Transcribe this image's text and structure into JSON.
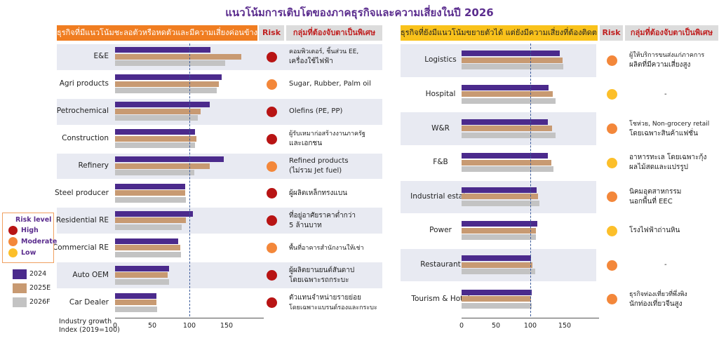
{
  "title": "แนวโน้มการเติบโตของภาคธุรกิจและความเสี่ยงในปี 2026",
  "colors": {
    "2024": "#4b2a8c",
    "2025E": "#c89a72",
    "2026F": "#c3c3c3",
    "High": "#b81414",
    "Moderate": "#f3873a",
    "Low": "#fcbf2a"
  },
  "legend": {
    "risk_title": "Risk level",
    "risk_levels": [
      "High",
      "Moderate",
      "Low"
    ],
    "years": [
      "2024",
      "2025E",
      "2026F"
    ]
  },
  "axis_note": [
    "Industry growth",
    "Index (2019=100)"
  ],
  "left": {
    "header": "ธุรกิจที่มีแนวโน้มชะลอตัวหรือหดตัวและมีความเสี่ยงค่อนข้างมาก",
    "risk_header": "Risk",
    "group_header": "กลุ่มที่ต้องจับตาเป็นพิเศษ",
    "rows": [
      {
        "name": "E&E",
        "risk": "High",
        "group": [
          "คอมพิวเตอร์, ชิ้นส่วน EE,",
          "เครื่องใช้ไฟฟ้า"
        ]
      },
      {
        "name": "Agri products",
        "risk": "Moderate",
        "group": [
          "Sugar, Rubber, Palm oil"
        ]
      },
      {
        "name": "Petrochemical",
        "risk": "High",
        "group": [
          "Olefins (PE, PP)"
        ]
      },
      {
        "name": "Construction",
        "risk": "High",
        "group": [
          "ผู้รับเหมาก่อสร้างงานภาครัฐ",
          "และเอกชน"
        ]
      },
      {
        "name": "Refinery",
        "risk": "Moderate",
        "group": [
          "Refined products",
          "(ไม่รวม Jet fuel)"
        ]
      },
      {
        "name": "Steel producer",
        "risk": "High",
        "group": [
          "ผู้ผลิตเหล็กทรงแบน"
        ]
      },
      {
        "name": "Residential RE",
        "risk": "High",
        "group": [
          "ที่อยู่อาศัยราคาต่ำกว่า",
          "5 ล้านบาท"
        ]
      },
      {
        "name": "Commercial RE",
        "risk": "Moderate",
        "group": [
          "พื้นที่อาคารสำนักงานให้เช่า"
        ]
      },
      {
        "name": "Auto OEM",
        "risk": "High",
        "group": [
          "ผู้ผลิตยานยนต์สันดาป",
          "โดยเฉพาะรถกระบะ"
        ]
      },
      {
        "name": "Car Dealer",
        "risk": "High",
        "group": [
          "ตัวแทนจำหน่ายรายย่อย",
          "โดยเฉพาะแบรนด์รองและกระบะ"
        ]
      }
    ]
  },
  "right": {
    "header": "ธุรกิจที่ยังมีแนวโน้มขยายตัวได้ แต่ยังมีความเสี่ยงที่ต้องติดตาม",
    "risk_header": "Risk",
    "group_header": "กลุ่มที่ต้องจับตาเป็นพิเศษ",
    "rows": [
      {
        "name": "Logistics",
        "risk": "Moderate",
        "group": [
          "ผู้ให้บริการขนส่งแก่ภาคการ",
          "ผลิตที่มีความเสี่ยงสูง"
        ]
      },
      {
        "name": "Hospital",
        "risk": "Low",
        "group": [
          "-"
        ]
      },
      {
        "name": "W&R",
        "risk": "Moderate",
        "group": [
          "โชห่วย, Non-grocery retail",
          "โดยเฉพาะสินค้าแฟชั่น"
        ]
      },
      {
        "name": "F&B",
        "risk": "Low",
        "group": [
          "อาหารทะเล โดยเฉพาะกุ้ง",
          "ผลไม้สดและแปรรูป"
        ]
      },
      {
        "name": "Industrial estate",
        "risk": "Moderate",
        "group": [
          "นิคมอุตสาหกรรม",
          "นอกพื้นที่ EEC"
        ]
      },
      {
        "name": "Power",
        "risk": "Low",
        "group": [
          "โรงไฟฟ้าถ่านหิน"
        ]
      },
      {
        "name": "Restaurant",
        "risk": "Moderate",
        "group": [
          "-"
        ]
      },
      {
        "name": "Tourism & Hotel",
        "risk": "Moderate",
        "group": [
          "ธุรกิจท่องเที่ยวที่พึ่งพิง",
          "นักท่องเที่ยวจีนสูง"
        ]
      }
    ]
  },
  "chart_data": [
    {
      "type": "bar",
      "orientation": "horizontal",
      "title": "ธุรกิจที่มีแนวโน้มชะลอตัวหรือหดตัวและมีความเสี่ยงค่อนข้างมาก",
      "xlabel": "Industry growth Index (2019=100)",
      "xlim": [
        0,
        200
      ],
      "xticks": [
        0,
        50,
        100,
        150
      ],
      "reference_line": 100,
      "categories": [
        "E&E",
        "Agri products",
        "Petrochemical",
        "Construction",
        "Refinery",
        "Steel producer",
        "Residential RE",
        "Commercial RE",
        "Auto OEM",
        "Car Dealer"
      ],
      "series": [
        {
          "name": "2024",
          "values": [
            128,
            143,
            127,
            108,
            146,
            94,
            105,
            85,
            73,
            56
          ]
        },
        {
          "name": "2025E",
          "values": [
            170,
            140,
            115,
            109,
            127,
            94,
            95,
            88,
            71,
            56
          ]
        },
        {
          "name": "2026F",
          "values": [
            148,
            137,
            111,
            108,
            107,
            95,
            90,
            89,
            73,
            57
          ]
        }
      ]
    },
    {
      "type": "bar",
      "orientation": "horizontal",
      "title": "ธุรกิจที่ยังมีแนวโน้มขยายตัวได้ แต่ยังมีความเสี่ยงที่ต้องติดตาม",
      "xlabel": "",
      "xlim": [
        0,
        200
      ],
      "xticks": [
        0,
        50,
        100,
        150
      ],
      "reference_line": 100,
      "categories": [
        "Logistics",
        "Hospital",
        "W&R",
        "F&B",
        "Industrial estate",
        "Power",
        "Restaurant",
        "Tourism & Hotel"
      ],
      "series": [
        {
          "name": "2024",
          "values": [
            143,
            127,
            126,
            126,
            109,
            110,
            101,
            102
          ]
        },
        {
          "name": "2025E",
          "values": [
            147,
            133,
            132,
            131,
            111,
            108,
            103,
            101
          ]
        },
        {
          "name": "2026F",
          "values": [
            148,
            137,
            137,
            134,
            113,
            108,
            107,
            102
          ]
        }
      ]
    }
  ]
}
